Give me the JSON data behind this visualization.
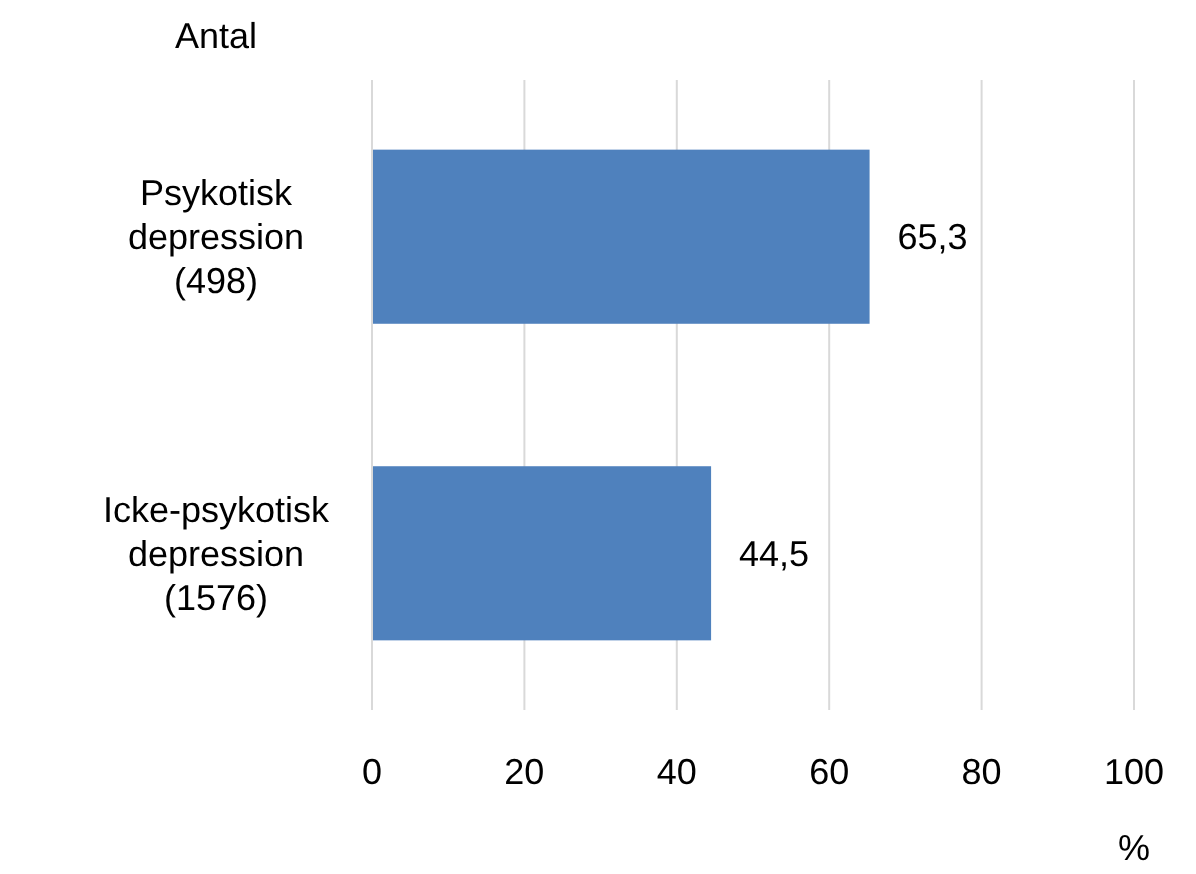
{
  "chart_data": {
    "type": "bar",
    "orientation": "horizontal",
    "ylabel": "Antal",
    "xlabel": "%",
    "categories": [
      "Psykotisk\ndepression\n(498)",
      "Icke-psykotisk\ndepression\n(1576)"
    ],
    "values": [
      65.3,
      44.5
    ],
    "color": "#4f81bd",
    "value_labels": [
      "65,3",
      "44,5"
    ],
    "xlim": [
      0,
      100
    ],
    "xticks": [
      0,
      20,
      40,
      60,
      80,
      100
    ],
    "grid": "x"
  }
}
